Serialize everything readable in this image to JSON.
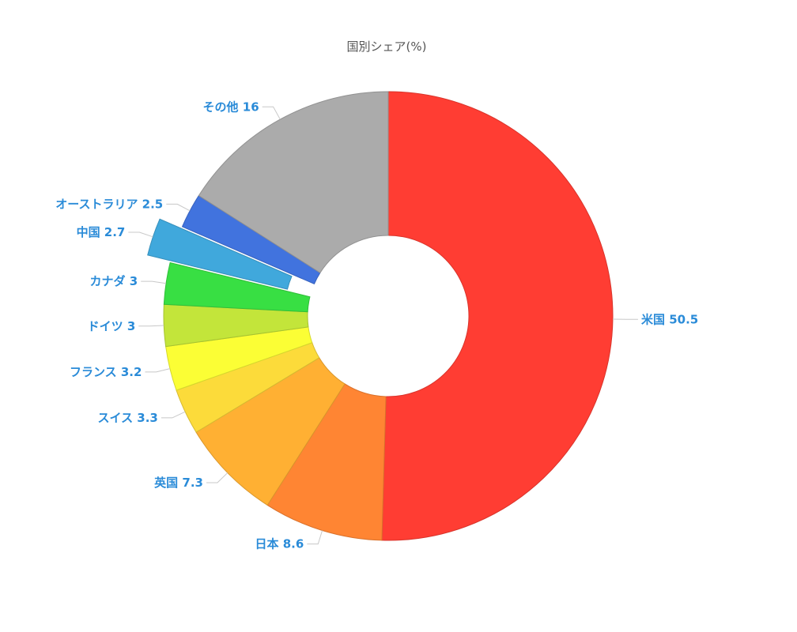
{
  "chart_data": {
    "type": "pie",
    "title": "国別シェア(%)",
    "donut": true,
    "start_at": "top, clockwise",
    "categories": [
      "米国",
      "日本",
      "英国",
      "スイス",
      "フランス",
      "ドイツ",
      "カナダ",
      "中国",
      "オーストラリア",
      "その他"
    ],
    "values": [
      50.5,
      8.6,
      7.3,
      3.3,
      3.2,
      3,
      3,
      2.7,
      2.5,
      16
    ],
    "exploded": [
      "中国"
    ],
    "colors": [
      "#ff3d33",
      "#ff8533",
      "#ffb033",
      "#fcdb3a",
      "#fbfe35",
      "#c3e53a",
      "#38df43",
      "#40a8dc",
      "#4173de",
      "#ababab"
    ],
    "label_color": "#2a8bd8"
  }
}
